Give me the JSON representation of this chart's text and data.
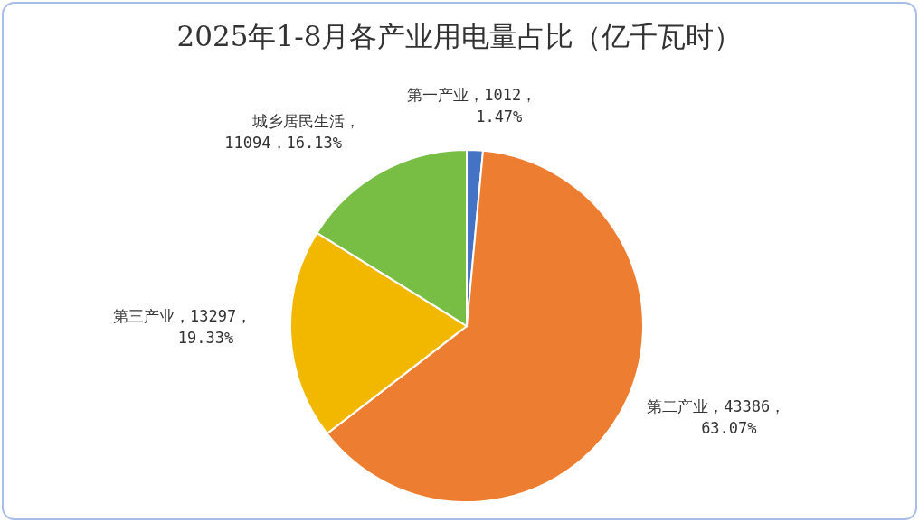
{
  "chart_data": {
    "type": "pie",
    "title": "2025年1-8月各产业用电量占比（亿千瓦时）",
    "categories": [
      "第一产业",
      "第二产业",
      "第三产业",
      "城乡居民生活"
    ],
    "values": [
      1012,
      43386,
      13297,
      11094
    ],
    "colors": [
      "#4472c4",
      "#ed7d31",
      "#f2b800",
      "#78bd44"
    ],
    "value_labels": [
      "，1012，\n1.47%",
      "，43386，\n63.07%",
      "，13297，\n19.33%",
      "，\n11094，16.13%"
    ],
    "legend": false
  }
}
